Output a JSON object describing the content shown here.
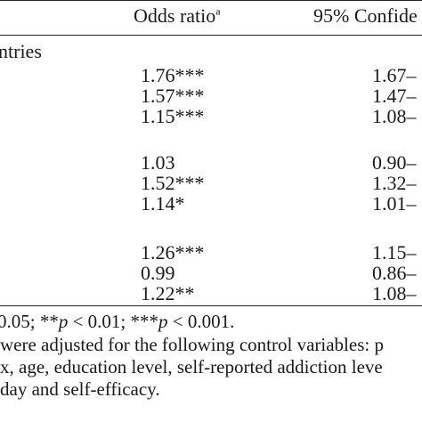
{
  "header": {
    "odds_ratio": "Odds ratio",
    "odds_ratio_sup": "a",
    "ci": "95% Confide"
  },
  "group_label": "ntries",
  "rows": [
    {
      "or": "1.76***",
      "ci": "1.67–"
    },
    {
      "or": "1.57***",
      "ci": "1.47–"
    },
    {
      "or": "1.15***",
      "ci": "1.08–"
    },
    {
      "or": "1.03",
      "ci": "0.90–"
    },
    {
      "or": "1.52***",
      "ci": "1.32–"
    },
    {
      "or": "1.14*",
      "ci": "1.01–"
    },
    {
      "or": "1.26***",
      "ci": "1.15–"
    },
    {
      "or": "0.99",
      "ci": "0.86–"
    },
    {
      "or": "1.22**",
      "ci": "1.08–"
    }
  ],
  "footnotes": {
    "line1_a": "0.05; **",
    "line1_p1": "p",
    "line1_b": " < 0.01; ***",
    "line1_p2": "p",
    "line1_c": " < 0.001.",
    "line2": " were adjusted for the following control variables: p",
    "line3": "x, age, education level, self-reported addiction leve",
    "line4": "day and self-efficacy."
  }
}
